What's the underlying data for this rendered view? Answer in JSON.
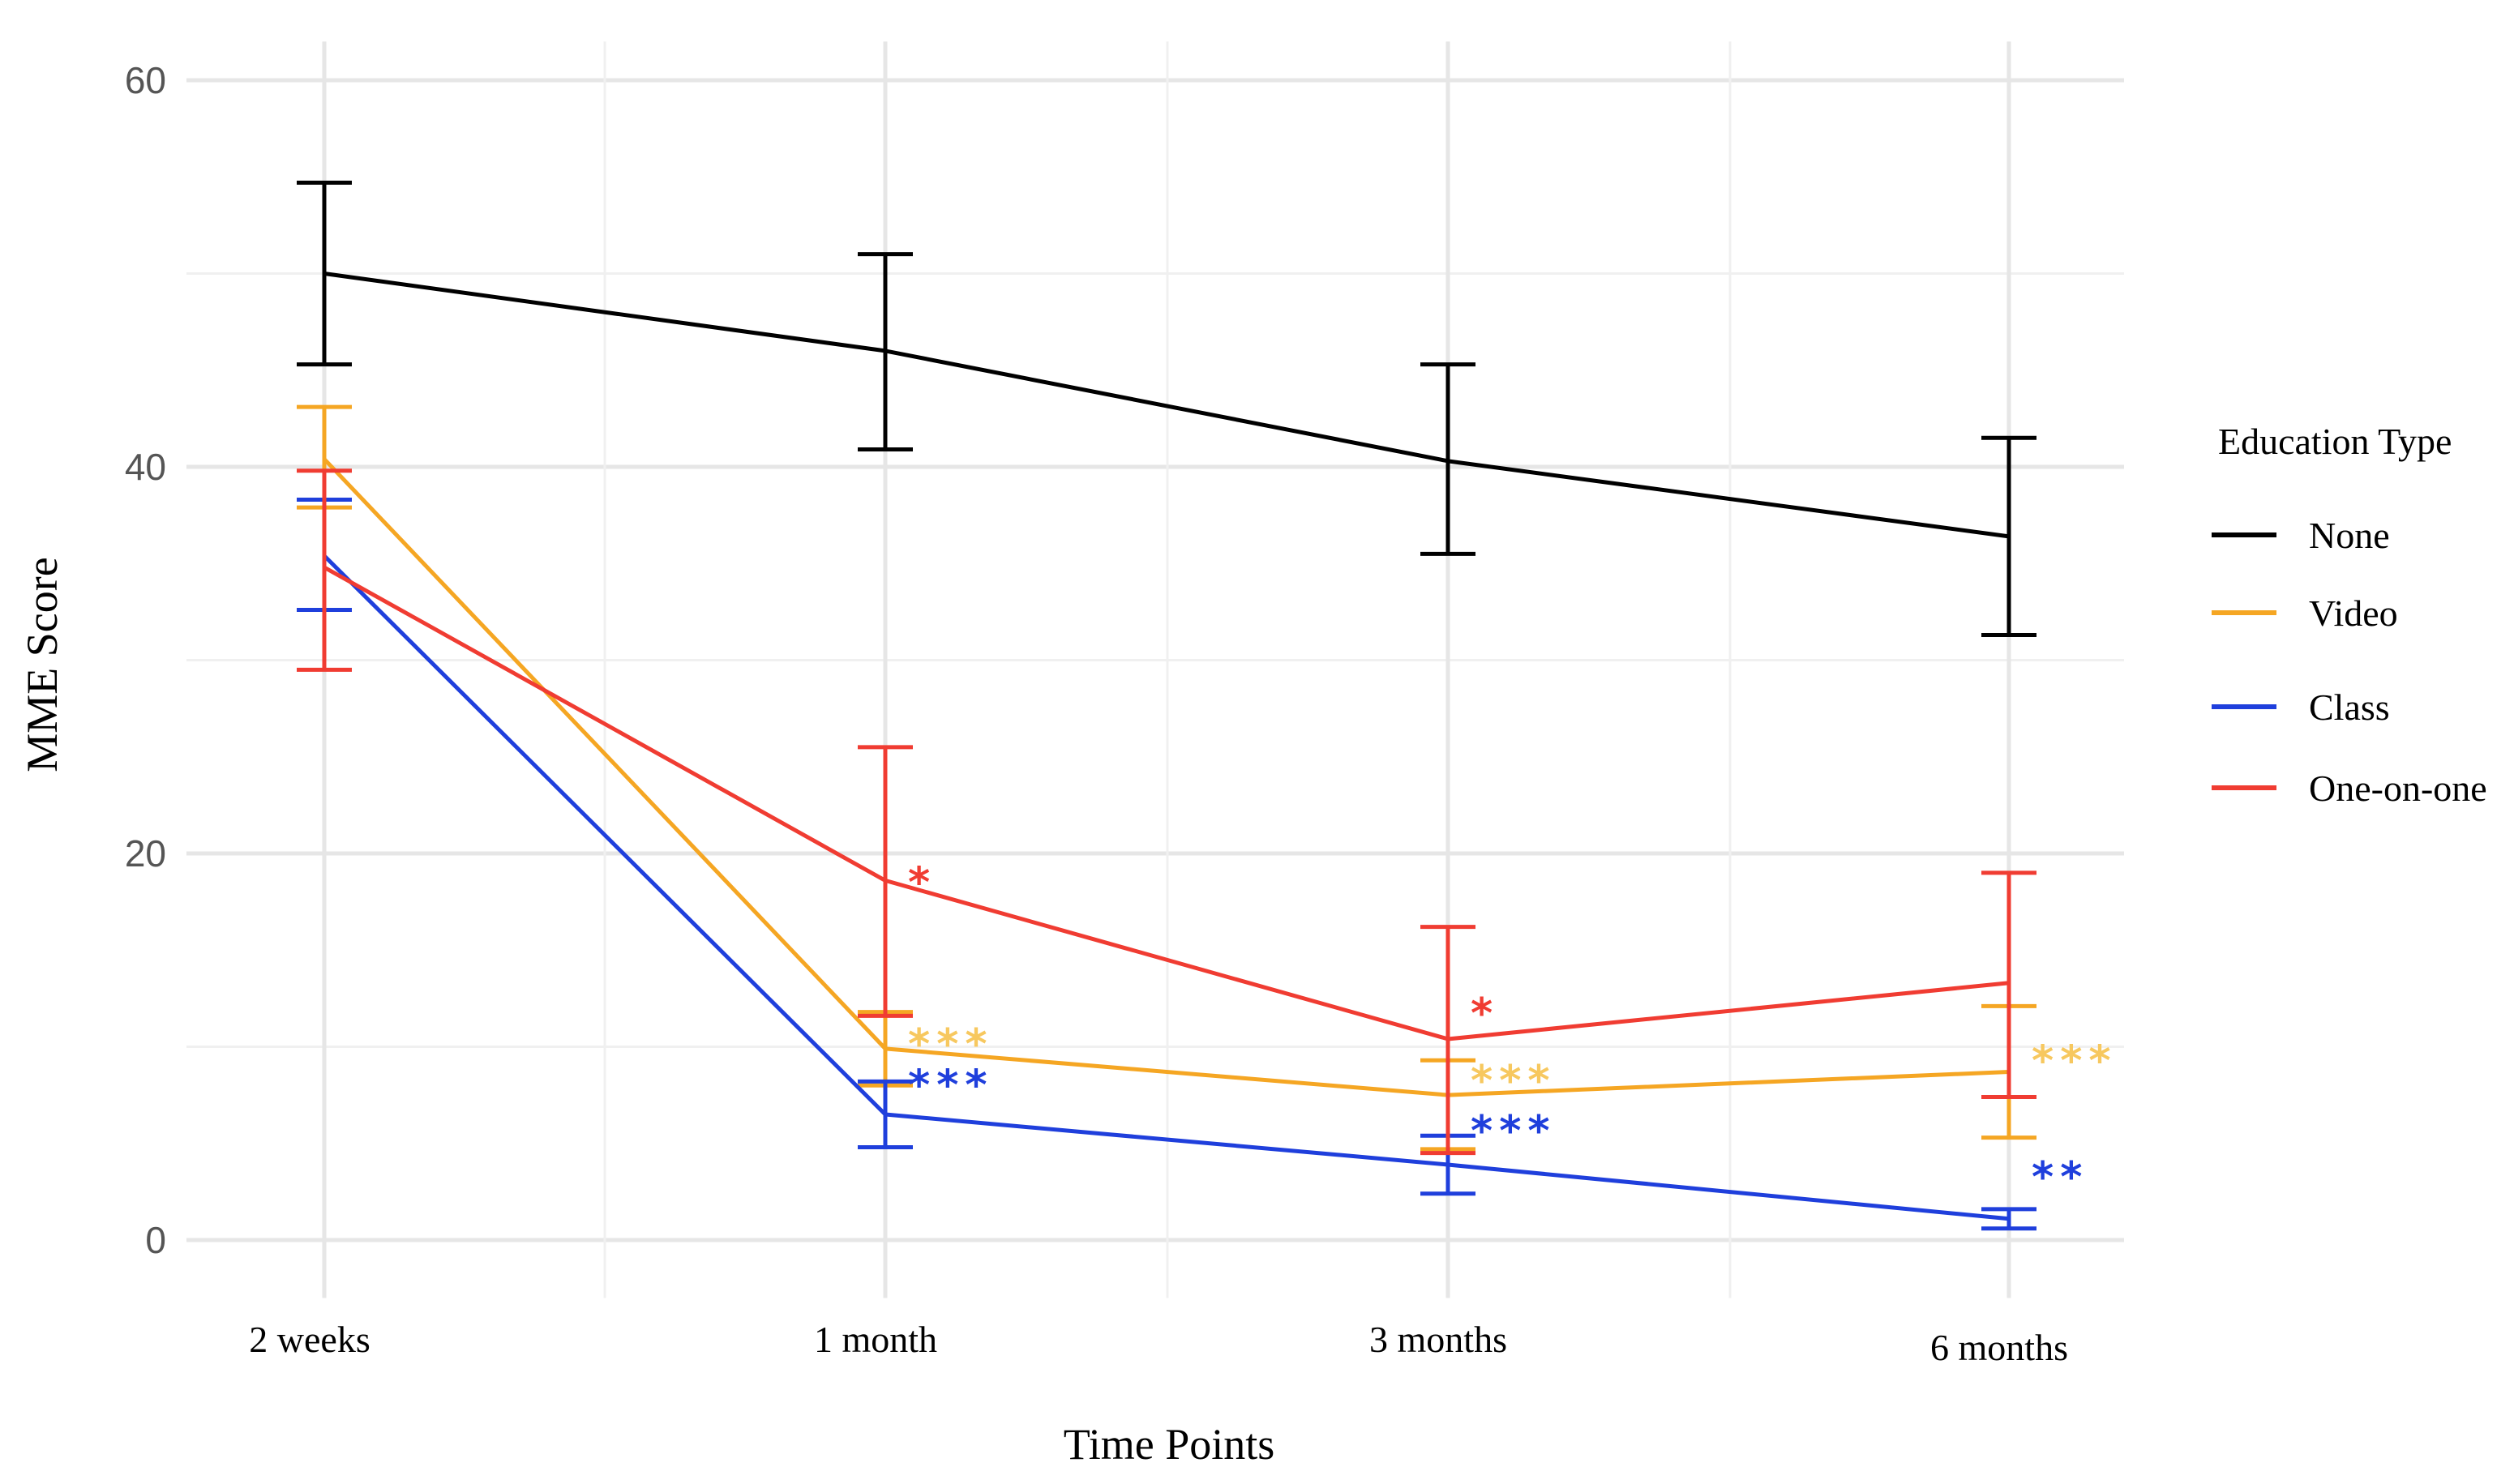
{
  "chart_data": {
    "type": "line",
    "title": "",
    "xlabel": "Time Points",
    "ylabel": "MME Score",
    "categories": [
      "2 weeks",
      "1 month",
      "3 months",
      "6 months"
    ],
    "ylim": [
      -3,
      62
    ],
    "yticks": [
      0,
      20,
      40,
      60
    ],
    "grid": true,
    "legend": {
      "title": "Education Type",
      "position": "right"
    },
    "series": [
      {
        "name": "None",
        "color": "#000000",
        "values": [
          50.0,
          46.0,
          40.3,
          36.4
        ],
        "error_low": [
          45.3,
          40.9,
          35.5,
          31.3
        ],
        "error_high": [
          54.7,
          51.0,
          45.3,
          41.5
        ],
        "significance": [
          "",
          "",
          "",
          ""
        ]
      },
      {
        "name": "Video",
        "color": "#f5a623",
        "values": [
          40.4,
          9.9,
          7.5,
          8.7
        ],
        "error_low": [
          37.9,
          8.0,
          4.7,
          5.3
        ],
        "error_high": [
          43.1,
          11.8,
          9.3,
          12.1
        ],
        "significance": [
          "",
          "***",
          "***",
          "***"
        ]
      },
      {
        "name": "Class",
        "color": "#1f3fdc",
        "values": [
          35.4,
          6.5,
          3.9,
          1.1
        ],
        "error_low": [
          32.6,
          4.8,
          2.4,
          0.6
        ],
        "error_high": [
          38.3,
          8.2,
          5.4,
          1.6
        ],
        "significance": [
          "",
          "***",
          "***",
          "**"
        ]
      },
      {
        "name": "One-on-one",
        "color": "#f03c32",
        "values": [
          34.8,
          18.6,
          10.4,
          13.3
        ],
        "error_low": [
          29.5,
          11.6,
          4.5,
          7.4
        ],
        "error_high": [
          39.8,
          25.5,
          16.2,
          19.0
        ],
        "significance": [
          "",
          "*",
          "*",
          ""
        ]
      }
    ],
    "significance_colors": {
      "None": "#000000",
      "Video": "#f7c85f",
      "Class": "#1f3fdc",
      "One-on-one": "#f03c32"
    }
  }
}
